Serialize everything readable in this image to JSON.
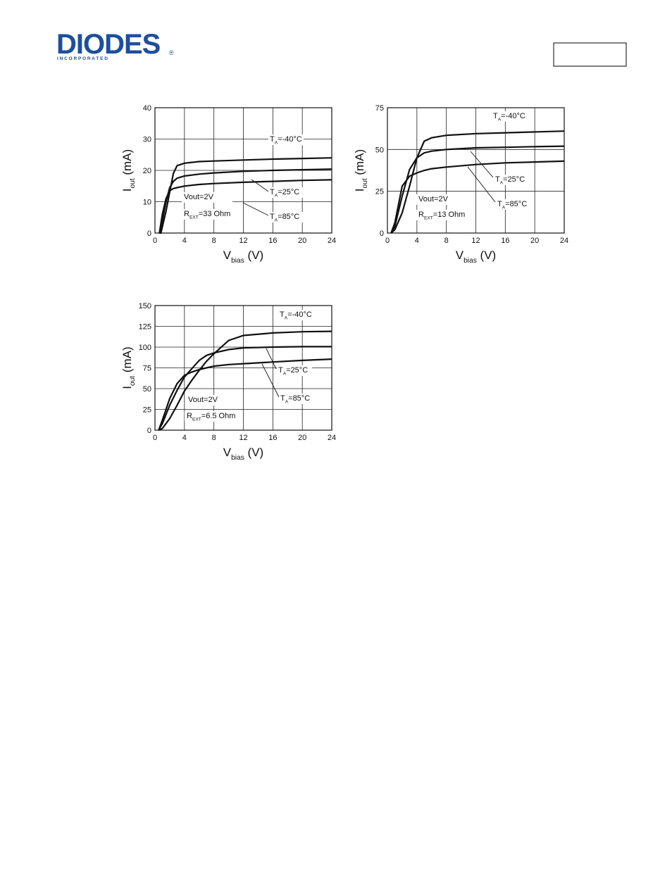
{
  "header": {
    "logo": "DIODES",
    "tagline": "I N C O R P O R A T E D",
    "mark": "®"
  },
  "chart_data": [
    {
      "type": "line",
      "x_label": {
        "symbol": "V",
        "sub": "bias",
        "text": " (V)"
      },
      "y_label": {
        "symbol": "I",
        "sub": "out",
        "text": " (mA)"
      },
      "xlim": [
        0,
        24
      ],
      "xticks": [
        0,
        4,
        8,
        12,
        16,
        20,
        24
      ],
      "ylim": [
        0,
        40
      ],
      "yticks": [
        0,
        10,
        20,
        30,
        40
      ],
      "grid": true,
      "x": [
        0.6,
        0.8,
        1,
        1.5,
        2,
        2.5,
        3,
        4,
        6,
        8,
        12,
        16,
        20,
        24
      ],
      "series": [
        {
          "name": {
            "symbol": "T",
            "sub": "A",
            "text": "=-40°C"
          },
          "color": "#111111",
          "values": [
            0,
            0,
            2,
            7,
            13,
            19,
            21.5,
            22.3,
            22.8,
            23,
            23.3,
            23.6,
            23.8,
            24
          ]
        },
        {
          "name": {
            "symbol": "T",
            "sub": "A",
            "text": "=25°C"
          },
          "color": "#111111",
          "values": [
            0,
            1,
            4,
            10,
            14.5,
            16.5,
            17.5,
            18.2,
            18.8,
            19.2,
            19.7,
            20,
            20.2,
            20.4
          ]
        },
        {
          "name": {
            "symbol": "T",
            "sub": "A",
            "text": "=85°C"
          },
          "color": "#111111",
          "values": [
            0,
            3,
            6,
            11,
            13.5,
            14.2,
            14.5,
            15,
            15.5,
            15.8,
            16.2,
            16.5,
            16.8,
            17
          ]
        }
      ],
      "annotations": [
        "Vout=2V",
        {
          "symbol": "R",
          "sub": "EXT",
          "text": "=33 Ohm"
        }
      ]
    },
    {
      "type": "line",
      "x_label": {
        "symbol": "V",
        "sub": "bias",
        "text": " (V)"
      },
      "y_label": {
        "symbol": "I",
        "sub": "out",
        "text": " (mA)"
      },
      "xlim": [
        0,
        24
      ],
      "xticks": [
        0,
        4,
        8,
        12,
        16,
        20,
        24
      ],
      "ylim": [
        0,
        75
      ],
      "yticks": [
        0,
        25,
        50,
        75
      ],
      "grid": true,
      "x": [
        0.5,
        1,
        2,
        3,
        4,
        5,
        6,
        8,
        12,
        16,
        20,
        24
      ],
      "series": [
        {
          "name": {
            "symbol": "T",
            "sub": "A",
            "text": "=-40°C"
          },
          "color": "#111111",
          "values": [
            0,
            2,
            12,
            28,
            45,
            55,
            57,
            58.5,
            59.5,
            60,
            60.5,
            61
          ]
        },
        {
          "name": {
            "symbol": "T",
            "sub": "A",
            "text": "=25°C"
          },
          "color": "#111111",
          "values": [
            0,
            4,
            22,
            38,
            45,
            48,
            49,
            50,
            51,
            51.3,
            51.7,
            52
          ]
        },
        {
          "name": {
            "symbol": "T",
            "sub": "A",
            "text": "=85°C"
          },
          "color": "#111111",
          "values": [
            0,
            6,
            28,
            34,
            36,
            37.5,
            38.5,
            39.5,
            41,
            42,
            42.5,
            43
          ]
        }
      ],
      "annotations": [
        "Vout=2V",
        {
          "symbol": "R",
          "sub": "EXT",
          "text": "=13 Ohm"
        }
      ]
    },
    {
      "type": "line",
      "x_label": {
        "symbol": "V",
        "sub": "bias",
        "text": " (V)"
      },
      "y_label": {
        "symbol": "I",
        "sub": "out",
        "text": " (mA)"
      },
      "xlim": [
        0,
        24
      ],
      "xticks": [
        0,
        4,
        8,
        12,
        16,
        20,
        24
      ],
      "ylim": [
        0,
        150
      ],
      "yticks": [
        0,
        25,
        50,
        75,
        100,
        125,
        150
      ],
      "grid": true,
      "x": [
        0.5,
        1,
        2,
        3,
        4,
        5,
        6,
        7,
        8,
        10,
        12,
        16,
        20,
        24
      ],
      "series": [
        {
          "name": {
            "symbol": "T",
            "sub": "A",
            "text": "=-40°C"
          },
          "color": "#111111",
          "values": [
            0,
            2,
            14,
            30,
            47,
            60,
            72,
            83,
            92,
            108,
            114,
            117,
            118.5,
            119
          ]
        },
        {
          "name": {
            "symbol": "T",
            "sub": "A",
            "text": "=25°C"
          },
          "color": "#111111",
          "values": [
            0,
            8,
            30,
            48,
            64,
            74,
            84,
            90,
            93,
            97,
            99,
            100,
            100.5,
            100.5
          ]
        },
        {
          "name": {
            "symbol": "T",
            "sub": "A",
            "text": "=85°C"
          },
          "color": "#111111",
          "values": [
            0,
            12,
            38,
            56,
            66,
            70,
            73,
            75,
            77,
            79,
            80,
            82,
            84,
            85.5
          ]
        }
      ],
      "annotations": [
        "Vout=2V",
        {
          "symbol": "R",
          "sub": "EXT",
          "text": "=6.5 Ohm"
        }
      ]
    }
  ]
}
